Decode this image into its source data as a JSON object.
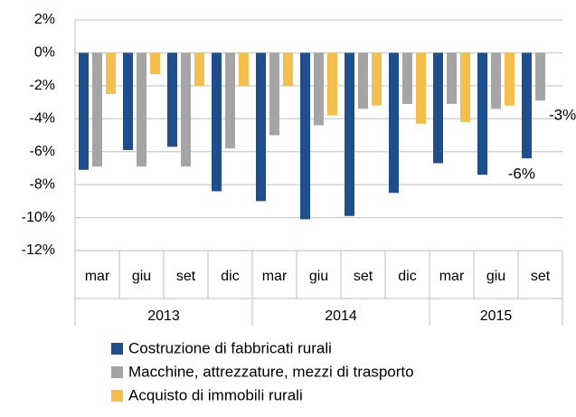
{
  "chart_data": {
    "type": "bar",
    "categories": [
      "mar",
      "giu",
      "set",
      "dic",
      "mar",
      "giu",
      "set",
      "dic",
      "mar",
      "giu",
      "set"
    ],
    "years": [
      "2013",
      "2013",
      "2013",
      "2013",
      "2014",
      "2014",
      "2014",
      "2014",
      "2015",
      "2015",
      "2015"
    ],
    "series": [
      {
        "name": "Costruzione di fabbricati rurali",
        "color": "#1f4e8c",
        "values": [
          -7.1,
          -5.9,
          -5.7,
          -8.4,
          -9.0,
          -10.1,
          -9.9,
          -8.5,
          -6.7,
          -7.4,
          -6.4
        ],
        "value_labels": [
          null,
          null,
          null,
          null,
          null,
          null,
          null,
          null,
          null,
          null,
          "-6%"
        ]
      },
      {
        "name": "Macchine, attrezzature, mezzi di trasporto",
        "color": "#a5a5a5",
        "values": [
          -6.9,
          -6.9,
          -6.9,
          -5.8,
          -5.0,
          -4.4,
          -3.4,
          -3.1,
          -3.1,
          -3.4,
          -2.9
        ],
        "value_labels": [
          null,
          null,
          null,
          null,
          null,
          null,
          null,
          null,
          null,
          null,
          "-3%"
        ]
      },
      {
        "name": "Acquisto di immobili rurali",
        "color": "#f5bf4f",
        "values": [
          -2.5,
          -1.3,
          -2.0,
          -2.0,
          -2.0,
          -3.8,
          -3.2,
          -4.3,
          -4.2,
          -3.2,
          null
        ]
      }
    ],
    "ylim": [
      -12,
      2
    ],
    "yticks": [
      {
        "value": -12,
        "label": "-12%"
      },
      {
        "value": -10,
        "label": "-10%"
      },
      {
        "value": -8,
        "label": "-8%"
      },
      {
        "value": -6,
        "label": "-6%"
      },
      {
        "value": -4,
        "label": "-4%"
      },
      {
        "value": -2,
        "label": "-2%"
      },
      {
        "value": 0,
        "label": "0%"
      },
      {
        "value": 2,
        "label": "2%"
      }
    ],
    "grid": true
  }
}
